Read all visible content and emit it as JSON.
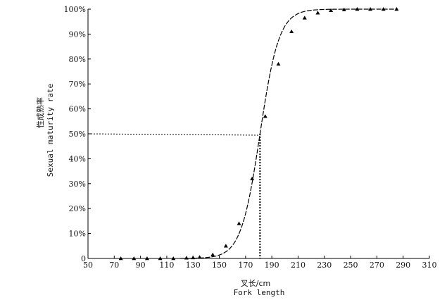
{
  "chart_data": {
    "type": "scatter",
    "title": "",
    "xlabel": "叉长/cm",
    "xlabel_en": "Fork length",
    "ylabel": "性成熟率",
    "ylabel_en": "Sexual maturity rate",
    "xlim": [
      50,
      310
    ],
    "ylim": [
      0,
      100
    ],
    "x_ticks": [
      50,
      70,
      90,
      110,
      130,
      150,
      170,
      190,
      210,
      230,
      250,
      270,
      290,
      310
    ],
    "y_ticks": [
      0,
      10,
      20,
      30,
      40,
      50,
      60,
      70,
      80,
      90,
      100
    ],
    "y_tick_labels": [
      "0",
      "10%",
      "20%",
      "30%",
      "40%",
      "50%",
      "60%",
      "70%",
      "80%",
      "90%",
      "100%"
    ],
    "grid": false,
    "legend": "none",
    "fitted_curve": {
      "type": "logistic",
      "midpoint_x": 181,
      "slope": 0.138
    },
    "reference_point": {
      "x": 181,
      "y": 50
    },
    "series": [
      {
        "points": [
          {
            "x": 75,
            "y": 0
          },
          {
            "x": 85,
            "y": 0
          },
          {
            "x": 95,
            "y": 0
          },
          {
            "x": 105,
            "y": 0
          },
          {
            "x": 115,
            "y": 0
          },
          {
            "x": 125,
            "y": 0.2
          },
          {
            "x": 130,
            "y": 0.3
          },
          {
            "x": 135,
            "y": 0.5
          },
          {
            "x": 145,
            "y": 1.5
          },
          {
            "x": 155,
            "y": 5
          },
          {
            "x": 165,
            "y": 14
          },
          {
            "x": 175,
            "y": 32
          },
          {
            "x": 185,
            "y": 57
          },
          {
            "x": 195,
            "y": 78
          },
          {
            "x": 205,
            "y": 91
          },
          {
            "x": 215,
            "y": 96.5
          },
          {
            "x": 225,
            "y": 98.5
          },
          {
            "x": 235,
            "y": 99.5
          },
          {
            "x": 245,
            "y": 99.8
          },
          {
            "x": 255,
            "y": 100
          },
          {
            "x": 265,
            "y": 100
          },
          {
            "x": 275,
            "y": 100
          },
          {
            "x": 285,
            "y": 100
          }
        ]
      }
    ]
  }
}
